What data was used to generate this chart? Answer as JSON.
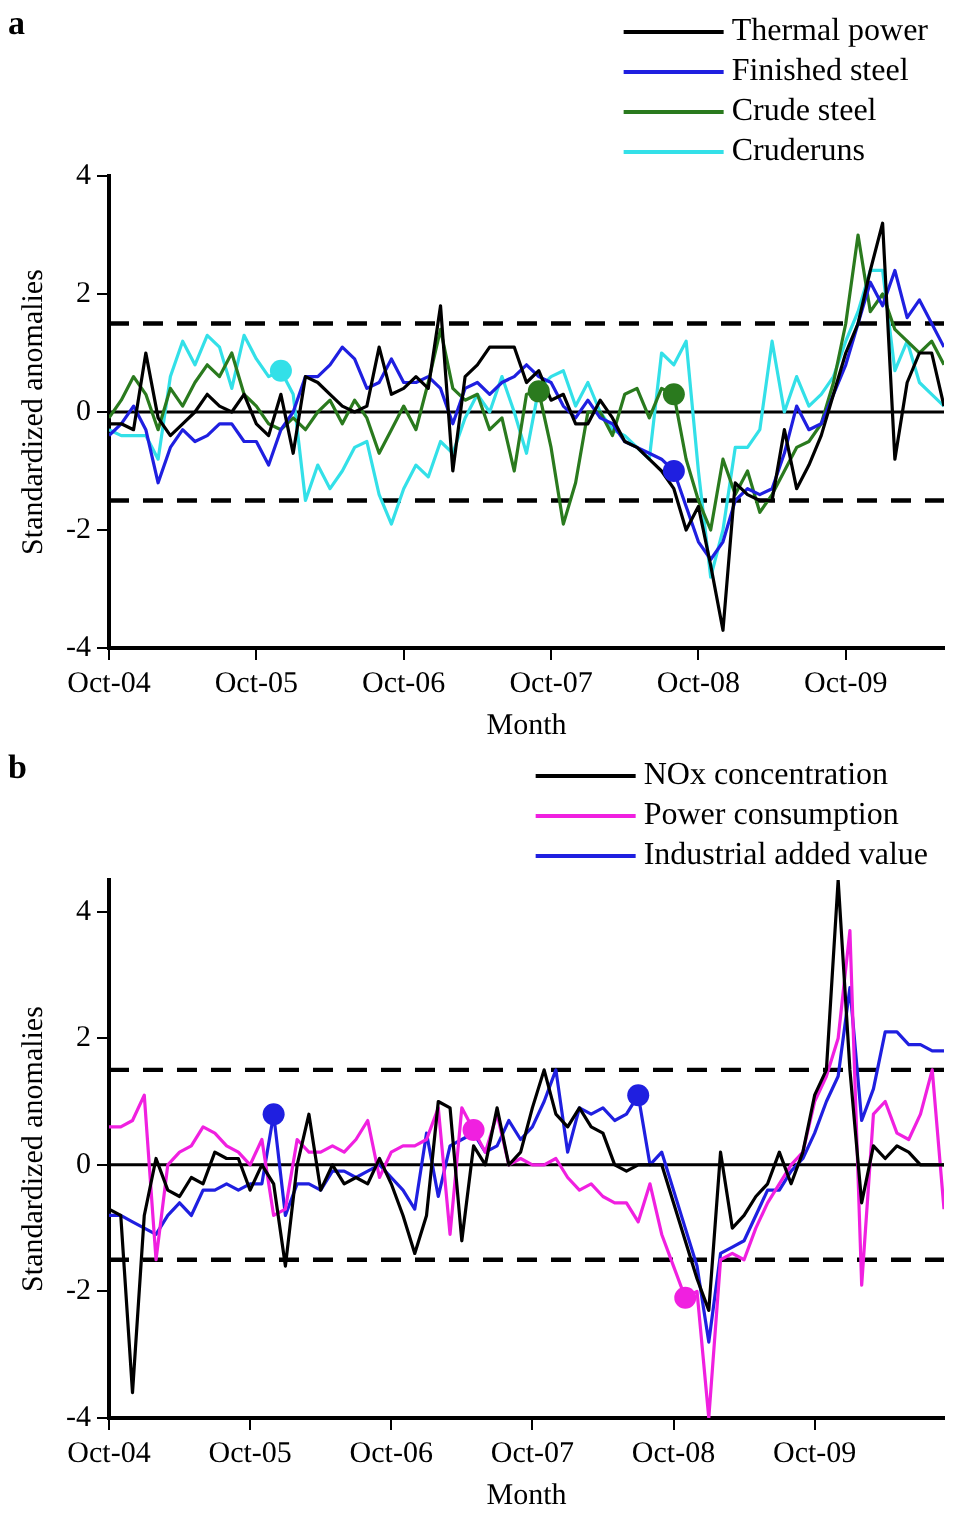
{
  "chart_data": [
    {
      "type": "line",
      "title": "a",
      "xlabel": "Month",
      "ylabel": "Standardized anomalies",
      "legend": "top right",
      "grid": false,
      "line_style": "solid",
      "marker": "none",
      "x": [
        "2004-10",
        "2004-11",
        "2004-12",
        "2005-01",
        "2005-02",
        "2005-03",
        "2005-04",
        "2005-05",
        "2005-06",
        "2005-07",
        "2005-08",
        "2005-09",
        "2005-10",
        "2005-11",
        "2005-12",
        "2006-01",
        "2006-02",
        "2006-03",
        "2006-04",
        "2006-05",
        "2006-06",
        "2006-07",
        "2006-08",
        "2006-09",
        "2006-10",
        "2006-11",
        "2006-12",
        "2007-01",
        "2007-02",
        "2007-03",
        "2007-04",
        "2007-05",
        "2007-06",
        "2007-07",
        "2007-08",
        "2007-09",
        "2007-10",
        "2007-11",
        "2007-12",
        "2008-01",
        "2008-02",
        "2008-03",
        "2008-04",
        "2008-05",
        "2008-06",
        "2008-07",
        "2008-08",
        "2008-09",
        "2008-10",
        "2008-11",
        "2008-12",
        "2009-01",
        "2009-02",
        "2009-03",
        "2009-04",
        "2009-05",
        "2009-06",
        "2009-07",
        "2009-08",
        "2009-09",
        "2009-10",
        "2009-11",
        "2009-12",
        "2010-01",
        "2010-02",
        "2010-03",
        "2010-04",
        "2010-05",
        "2010-06"
      ],
      "xlim": [
        "2004-10",
        "2010-06"
      ],
      "xticks": [
        {
          "value": "2004-10",
          "label": "Oct-04"
        },
        {
          "value": "2005-10",
          "label": "Oct-05"
        },
        {
          "value": "2006-10",
          "label": "Oct-06"
        },
        {
          "value": "2007-10",
          "label": "Oct-07"
        },
        {
          "value": "2008-10",
          "label": "Oct-08"
        },
        {
          "value": "2009-10",
          "label": "Oct-09"
        }
      ],
      "ylim": [
        -4,
        4
      ],
      "yticks": [
        -4,
        -2,
        0,
        2,
        4
      ],
      "ref_lines": [
        {
          "axis": "y",
          "value": 1.5,
          "color": "#000000",
          "line_style": "dashed"
        },
        {
          "axis": "y",
          "value": -1.5,
          "color": "#000000",
          "line_style": "dashed"
        },
        {
          "axis": "y",
          "value": 0,
          "color": "#000000",
          "line_style": "solid"
        }
      ],
      "series": [
        {
          "name": "Thermal power",
          "color": "#000000",
          "values": [
            -0.2,
            -0.2,
            -0.3,
            1.0,
            -0.1,
            -0.4,
            -0.2,
            0.0,
            0.3,
            0.1,
            0.0,
            0.3,
            -0.2,
            -0.4,
            0.3,
            -0.7,
            0.6,
            0.5,
            0.3,
            0.1,
            0.0,
            0.1,
            1.1,
            0.3,
            0.4,
            0.6,
            0.4,
            1.8,
            -1.0,
            0.6,
            0.8,
            1.1,
            1.1,
            1.1,
            0.5,
            0.7,
            0.2,
            0.3,
            -0.2,
            -0.2,
            0.2,
            -0.1,
            -0.5,
            -0.6,
            -0.8,
            -1.0,
            -1.3,
            -2.0,
            -1.6,
            -2.6,
            -3.7,
            -1.2,
            -1.4,
            -1.5,
            -1.5,
            -0.3,
            -1.3,
            -0.9,
            -0.4,
            0.3,
            1.0,
            1.5,
            2.4,
            3.2,
            -0.8,
            0.5,
            1.0,
            1.0,
            0.1
          ]
        },
        {
          "name": "Finished steel",
          "color": "#1f1fe0",
          "values": [
            -0.4,
            -0.2,
            0.1,
            -0.3,
            -1.2,
            -0.6,
            -0.3,
            -0.5,
            -0.4,
            -0.2,
            -0.2,
            -0.5,
            -0.5,
            -0.9,
            -0.3,
            0.0,
            0.6,
            0.6,
            0.8,
            1.1,
            0.9,
            0.4,
            0.5,
            0.9,
            0.5,
            0.5,
            0.6,
            0.4,
            -0.2,
            0.4,
            0.5,
            0.3,
            0.5,
            0.6,
            0.8,
            0.6,
            0.5,
            0.1,
            -0.1,
            0.2,
            -0.1,
            -0.2,
            -0.5,
            -0.6,
            -0.7,
            -0.8,
            -1.0,
            -1.6,
            -2.2,
            -2.5,
            -2.2,
            -1.5,
            -1.3,
            -1.4,
            -1.3,
            -0.7,
            0.1,
            -0.3,
            -0.2,
            0.3,
            0.8,
            1.5,
            2.2,
            1.8,
            2.4,
            1.6,
            1.9,
            1.5,
            1.1
          ]
        },
        {
          "name": "Crude steel",
          "color": "#2a7a1e",
          "values": [
            -0.1,
            0.2,
            0.6,
            0.3,
            -0.3,
            0.4,
            0.1,
            0.5,
            0.8,
            0.6,
            1.0,
            0.3,
            0.1,
            -0.2,
            -0.3,
            -0.1,
            -0.3,
            0.0,
            0.2,
            -0.2,
            0.2,
            -0.1,
            -0.7,
            -0.3,
            0.1,
            -0.3,
            0.5,
            1.4,
            0.4,
            0.2,
            0.3,
            -0.3,
            -0.1,
            -1.0,
            0.3,
            0.35,
            -0.6,
            -1.9,
            -1.2,
            0.0,
            0.0,
            -0.4,
            0.3,
            0.4,
            -0.1,
            0.4,
            0.3,
            -0.8,
            -1.5,
            -2.0,
            -0.8,
            -1.4,
            -1.0,
            -1.7,
            -1.4,
            -1.0,
            -0.6,
            -0.5,
            -0.2,
            0.5,
            1.5,
            3.0,
            1.7,
            2.0,
            1.4,
            1.2,
            1.0,
            1.2,
            0.8
          ]
        },
        {
          "name": "Cruderuns",
          "color": "#33e0e8",
          "values": [
            -0.3,
            -0.4,
            -0.4,
            -0.4,
            -0.8,
            0.6,
            1.2,
            0.8,
            1.3,
            1.1,
            0.4,
            1.3,
            0.9,
            0.6,
            0.7,
            0.3,
            -1.5,
            -0.9,
            -1.3,
            -1.0,
            -0.6,
            -0.5,
            -1.4,
            -1.9,
            -1.3,
            -0.9,
            -1.1,
            -0.5,
            -0.7,
            -0.1,
            0.3,
            0.0,
            0.6,
            0.0,
            -0.7,
            0.4,
            0.6,
            0.7,
            0.1,
            0.5,
            0.0,
            -0.3,
            -0.4,
            -0.6,
            -0.8,
            1.0,
            0.8,
            1.2,
            -1.0,
            -2.8,
            -2.0,
            -0.6,
            -0.6,
            -0.3,
            1.2,
            0.0,
            0.6,
            0.1,
            0.3,
            0.6,
            1.2,
            1.7,
            2.4,
            2.4,
            0.7,
            1.2,
            0.5,
            0.3,
            0.1
          ]
        },
        {
          "type": "scatter",
          "marker": "circle",
          "color": "#33e0e8",
          "x": [
            "2005-12"
          ],
          "values": [
            0.7
          ]
        },
        {
          "type": "scatter",
          "marker": "circle",
          "color": "#2a7a1e",
          "x": [
            "2007-09",
            "2008-08"
          ],
          "values": [
            0.35,
            0.3
          ]
        },
        {
          "type": "scatter",
          "marker": "circle",
          "color": "#1f1fe0",
          "x": [
            "2008-08"
          ],
          "values": [
            -1.0
          ]
        }
      ]
    },
    {
      "type": "line",
      "title": "b",
      "xlabel": "Month",
      "ylabel": "Standardized anomalies",
      "legend": "top right",
      "grid": false,
      "line_style": "solid",
      "marker": "none",
      "x": [
        "2004-10",
        "2004-11",
        "2004-12",
        "2005-01",
        "2005-02",
        "2005-03",
        "2005-04",
        "2005-05",
        "2005-06",
        "2005-07",
        "2005-08",
        "2005-09",
        "2005-10",
        "2005-11",
        "2005-12",
        "2006-01",
        "2006-02",
        "2006-03",
        "2006-04",
        "2006-05",
        "2006-06",
        "2006-07",
        "2006-08",
        "2006-09",
        "2006-10",
        "2006-11",
        "2006-12",
        "2007-01",
        "2007-02",
        "2007-03",
        "2007-04",
        "2007-05",
        "2007-06",
        "2007-07",
        "2007-08",
        "2007-09",
        "2007-10",
        "2007-11",
        "2007-12",
        "2008-01",
        "2008-02",
        "2008-03",
        "2008-04",
        "2008-05",
        "2008-06",
        "2008-07",
        "2008-08",
        "2008-09",
        "2008-10",
        "2008-11",
        "2008-12",
        "2009-01",
        "2009-02",
        "2009-03",
        "2009-04",
        "2009-05",
        "2009-06",
        "2009-07",
        "2009-08",
        "2009-09",
        "2009-10",
        "2009-11",
        "2009-12",
        "2010-01",
        "2010-02",
        "2010-03",
        "2010-04",
        "2010-05",
        "2010-06",
        "2010-07",
        "2010-08",
        "2010-09"
      ],
      "xlim": [
        "2004-10",
        "2010-09"
      ],
      "xticks": [
        {
          "value": "2004-10",
          "label": "Oct-04"
        },
        {
          "value": "2005-10",
          "label": "Oct-05"
        },
        {
          "value": "2006-10",
          "label": "Oct-06"
        },
        {
          "value": "2007-10",
          "label": "Oct-07"
        },
        {
          "value": "2008-10",
          "label": "Oct-08"
        },
        {
          "value": "2009-10",
          "label": "Oct-09"
        }
      ],
      "ylim": [
        -4,
        4.5
      ],
      "yticks": [
        -4,
        -2,
        0,
        2,
        4
      ],
      "ref_lines": [
        {
          "axis": "y",
          "value": 1.5,
          "color": "#000000",
          "line_style": "dashed"
        },
        {
          "axis": "y",
          "value": -1.5,
          "color": "#000000",
          "line_style": "dashed"
        },
        {
          "axis": "y",
          "value": 0,
          "color": "#000000",
          "line_style": "solid"
        }
      ],
      "series": [
        {
          "name": "NOx concentration",
          "color": "#000000",
          "values": [
            -0.7,
            -0.8,
            -3.6,
            -0.8,
            0.1,
            -0.4,
            -0.5,
            -0.2,
            -0.3,
            0.2,
            0.1,
            0.1,
            -0.4,
            0.0,
            -0.3,
            -1.6,
            0.0,
            0.8,
            -0.4,
            0.0,
            -0.3,
            -0.2,
            -0.3,
            0.1,
            -0.3,
            -0.8,
            -1.4,
            -0.8,
            1.0,
            0.9,
            -1.2,
            0.3,
            0.0,
            0.9,
            0.0,
            0.2,
            0.9,
            1.5,
            0.8,
            0.6,
            0.9,
            0.6,
            0.5,
            0.0,
            -0.1,
            0.0,
            0.0,
            0.0,
            -0.6,
            -1.2,
            -1.8,
            -2.3,
            0.2,
            -1.0,
            -0.8,
            -0.5,
            -0.3,
            0.2,
            -0.3,
            0.2,
            1.1,
            1.5,
            4.5,
            1.5,
            -0.6,
            0.3,
            0.1,
            0.3,
            0.2,
            0.0,
            0.0,
            0.0
          ]
        },
        {
          "name": "Power consumption",
          "color": "#f020e0",
          "values": [
            0.6,
            0.6,
            0.7,
            1.1,
            -1.5,
            0.0,
            0.2,
            0.3,
            0.6,
            0.5,
            0.3,
            0.2,
            0.0,
            0.4,
            -0.8,
            -0.7,
            0.4,
            0.2,
            0.2,
            0.3,
            0.2,
            0.4,
            0.7,
            -0.2,
            0.2,
            0.3,
            0.3,
            0.4,
            0.9,
            -1.1,
            0.9,
            0.55,
            0.2,
            0.8,
            0.0,
            0.1,
            0.0,
            0.0,
            0.1,
            -0.2,
            -0.4,
            -0.3,
            -0.5,
            -0.6,
            -0.6,
            -0.9,
            -0.3,
            -1.1,
            -1.6,
            -2.1,
            -2.0,
            -4.0,
            -1.5,
            -1.4,
            -1.5,
            -1.0,
            -0.6,
            -0.3,
            0.0,
            0.2,
            1.0,
            1.4,
            2.0,
            3.7,
            -1.9,
            0.8,
            1.0,
            0.5,
            0.4,
            0.8,
            1.5,
            -0.7
          ]
        },
        {
          "name": "Industrial added value",
          "color": "#1f1fe0",
          "values": [
            -0.8,
            -0.8,
            -0.9,
            -1.0,
            -1.1,
            -0.8,
            -0.6,
            -0.8,
            -0.4,
            -0.4,
            -0.3,
            -0.4,
            -0.3,
            -0.3,
            0.8,
            -0.8,
            -0.3,
            -0.3,
            -0.4,
            -0.1,
            -0.1,
            -0.2,
            -0.1,
            0.0,
            -0.2,
            -0.4,
            -0.7,
            0.5,
            -0.5,
            0.3,
            0.4,
            0.5,
            0.2,
            0.3,
            0.7,
            0.4,
            0.6,
            1.0,
            1.5,
            0.2,
            0.9,
            0.8,
            0.9,
            0.7,
            0.8,
            1.1,
            0.0,
            0.2,
            -0.4,
            -1.0,
            -1.6,
            -2.8,
            -1.4,
            -1.3,
            -1.2,
            -0.8,
            -0.4,
            -0.4,
            -0.1,
            0.1,
            0.5,
            1.0,
            1.4,
            2.8,
            0.7,
            1.2,
            2.1,
            2.1,
            1.9,
            1.9,
            1.8,
            1.8
          ]
        },
        {
          "type": "scatter",
          "marker": "circle",
          "color": "#1f1fe0",
          "x": [
            "2005-12",
            "2008-07"
          ],
          "values": [
            0.8,
            1.1
          ]
        },
        {
          "type": "scatter",
          "marker": "circle",
          "color": "#f020e0",
          "x": [
            "2007-05",
            "2008-11"
          ],
          "values": [
            0.55,
            -2.1
          ]
        }
      ]
    }
  ]
}
